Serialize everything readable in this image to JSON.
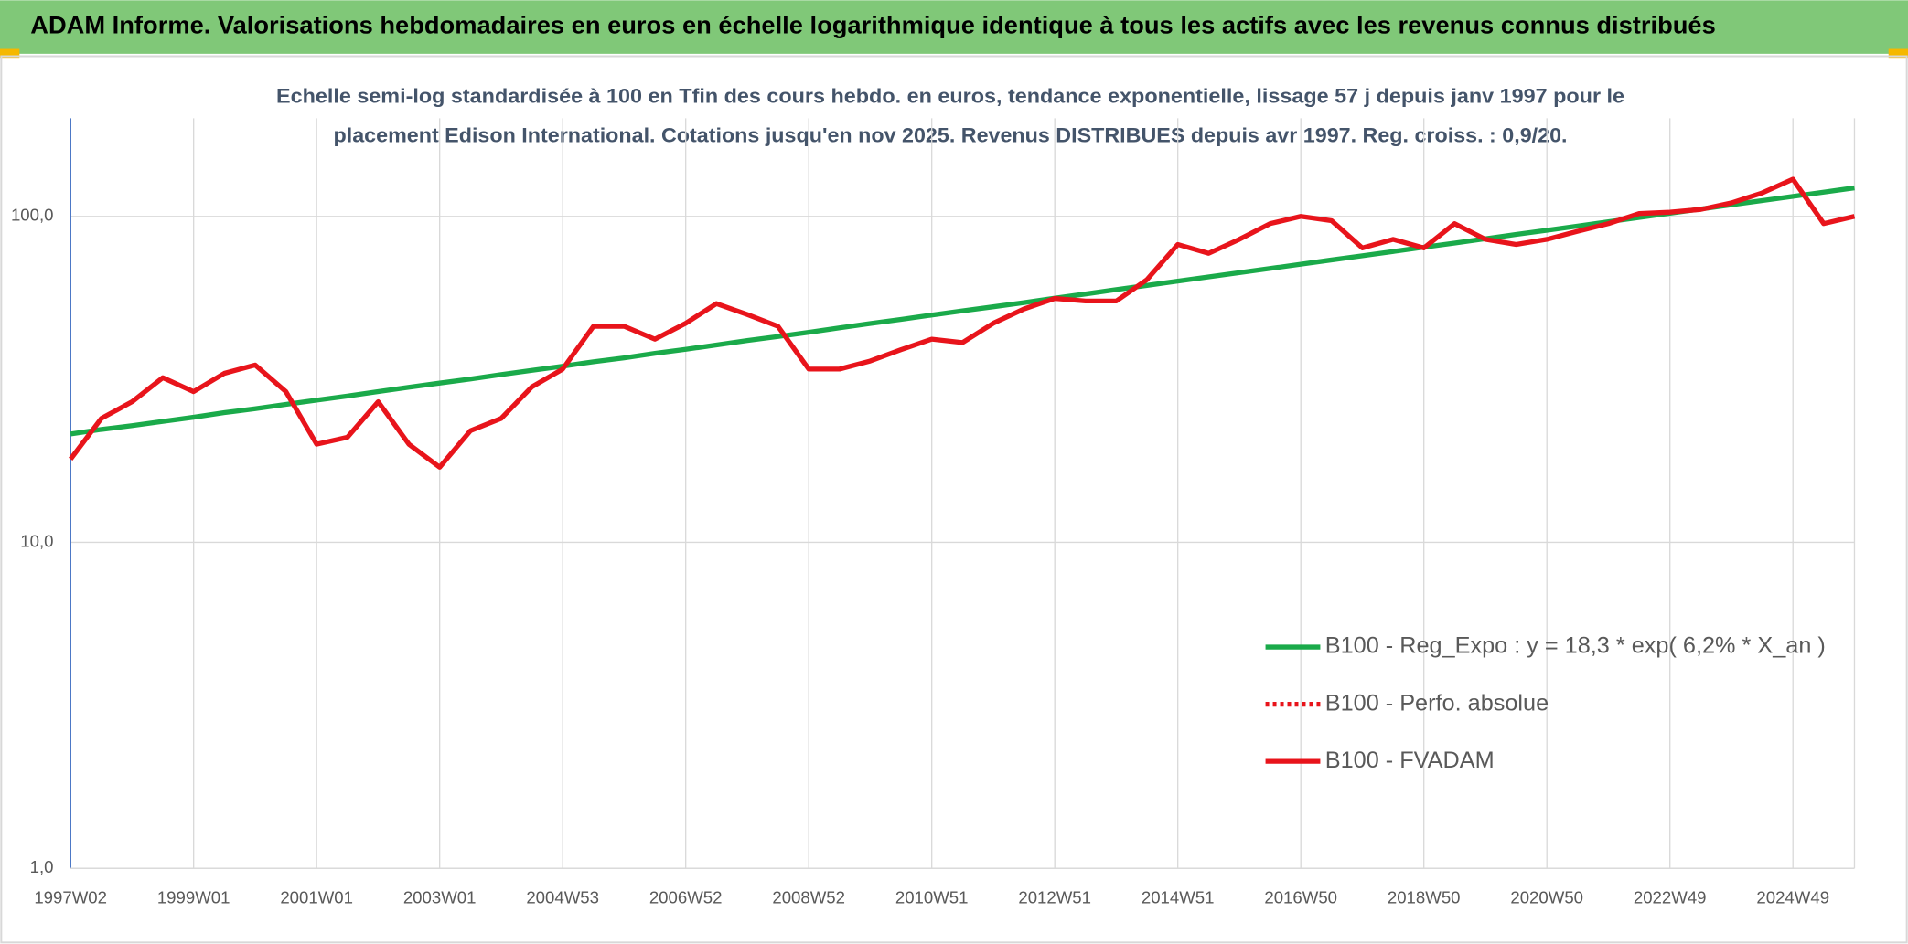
{
  "header": {
    "title": "ADAM Informe. Valorisations hebdomadaires en euros en échelle logarithmique identique à tous les actifs avec les revenus connus distribués"
  },
  "chart_data": {
    "type": "line",
    "subtitle": [
      "Echelle semi-log standardisée à 100 en Tfin des cours hebdo. en euros, tendance exponentielle, lissage 57 j depuis janv 1997 pour le",
      "placement Edison International. Cotations jusqu'en nov 2025. Revenus DISTRIBUES depuis avr 1997. Reg. croiss. : 0,9/20."
    ],
    "categories": [
      "1997W02",
      null,
      null,
      null,
      "1999W01",
      null,
      null,
      null,
      "2001W01",
      null,
      null,
      null,
      "2003W01",
      null,
      null,
      null,
      "2004W53",
      null,
      null,
      null,
      "2006W52",
      null,
      null,
      null,
      "2008W52",
      null,
      null,
      null,
      "2010W51",
      null,
      null,
      null,
      "2012W51",
      null,
      null,
      null,
      "2014W51",
      null,
      null,
      null,
      "2016W50",
      null,
      null,
      null,
      "2018W50",
      null,
      null,
      null,
      "2020W50",
      null,
      null,
      null,
      "2022W49",
      null,
      null,
      null,
      "2024W49",
      null,
      null
    ],
    "series": [
      {
        "name": "B100 - Reg_Expo : y = 18,3 * exp( 6,2% *  X_an )",
        "color": "#1aaa4a",
        "style": "solid",
        "values": [
          21.5,
          22.2,
          22.8,
          23.5,
          24.2,
          25.0,
          25.7,
          26.5,
          27.3,
          28.1,
          29.0,
          29.9,
          30.8,
          31.7,
          32.7,
          33.7,
          34.7,
          35.8,
          36.8,
          38.0,
          39.1,
          40.3,
          41.6,
          42.8,
          44.1,
          45.5,
          46.9,
          48.3,
          49.8,
          51.3,
          52.8,
          54.4,
          56.1,
          57.8,
          59.6,
          61.4,
          63.3,
          65.2,
          67.2,
          69.2,
          71.3,
          73.5,
          75.7,
          78.0,
          80.4,
          82.8,
          85.4,
          88.0,
          90.6,
          93.4,
          96.3,
          99.2,
          102.2,
          105.3,
          108.5,
          111.8,
          115.2,
          118.7,
          122.3
        ]
      },
      {
        "name": "B100 - Perfo. absolue",
        "color": "#e8141b",
        "style": "dotted"
      },
      {
        "name": "B100 - FVADAM",
        "color": "#e8141b",
        "style": "solid",
        "values": [
          18,
          24,
          27,
          32,
          29,
          33,
          35,
          29,
          20,
          21,
          27,
          20,
          17,
          22,
          24,
          30,
          34,
          46,
          46,
          42,
          47,
          54,
          50,
          46,
          34,
          34,
          36,
          39,
          42,
          41,
          47,
          52,
          56,
          55,
          55,
          64,
          82,
          77,
          85,
          95,
          100,
          97,
          80,
          85,
          80,
          95,
          85,
          82,
          85,
          90,
          95,
          102,
          103,
          105,
          110,
          118,
          130,
          95,
          100
        ]
      }
    ],
    "log_scale": true,
    "ylim": [
      1,
      200
    ],
    "yticks": [
      {
        "value": 1,
        "label": "1,0"
      },
      {
        "value": 10,
        "label": "10,0"
      },
      {
        "value": 100,
        "label": "100,0"
      }
    ],
    "grid": true,
    "legend": "lower right"
  }
}
